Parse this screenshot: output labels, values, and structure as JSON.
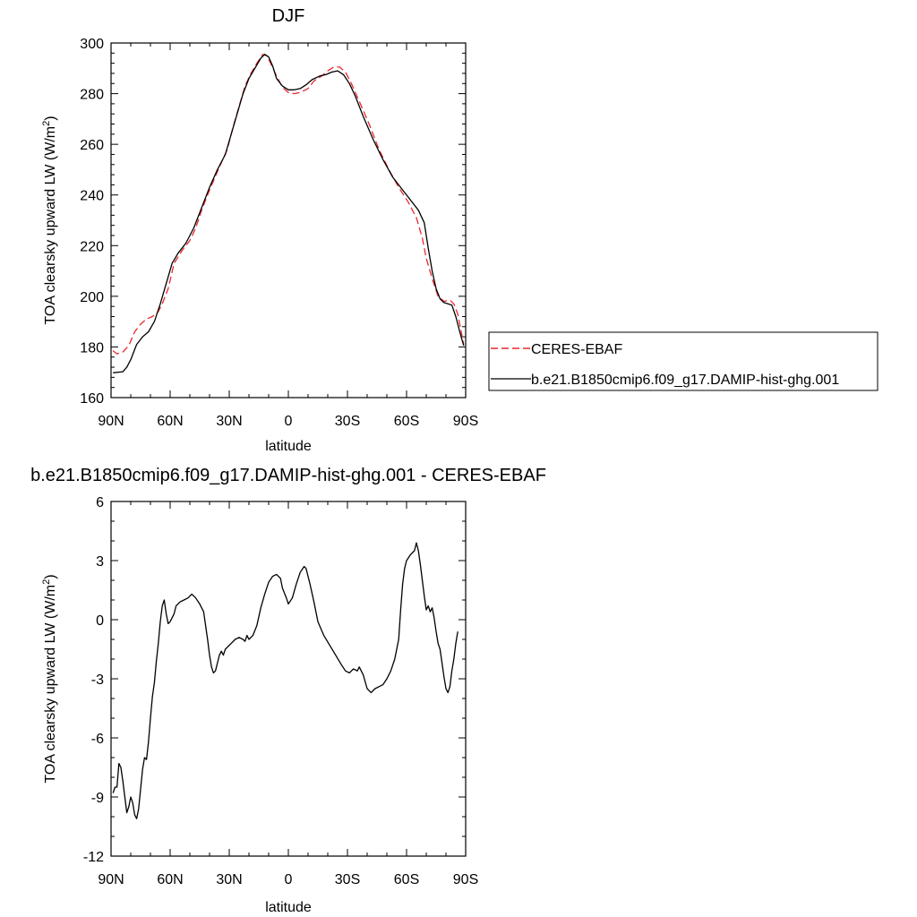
{
  "chart_data": [
    {
      "type": "line",
      "title": "DJF",
      "xlabel": "latitude",
      "ylabel": "TOA clearsky upward LW (W/m",
      "ylabel_sup": "2",
      "ylabel_end": ")",
      "xlim": [
        90,
        -90
      ],
      "ylim": [
        160,
        300
      ],
      "xtick_values": [
        90,
        60,
        30,
        0,
        -30,
        -60,
        -90
      ],
      "xtick_labels": [
        "90N",
        "60N",
        "30N",
        "0",
        "30S",
        "60S",
        "90S"
      ],
      "ytick_values": [
        160,
        180,
        200,
        220,
        240,
        260,
        280,
        300
      ],
      "ytick_labels": [
        "160",
        "180",
        "200",
        "220",
        "240",
        "260",
        "280",
        "300"
      ],
      "legend_position": "right",
      "grid": false,
      "series": [
        {
          "name": "CERES-EBAF",
          "color": "#e8282f",
          "dash": "dashed",
          "points": [
            [
              89,
              178.5
            ],
            [
              87,
              177.3
            ],
            [
              84,
              178
            ],
            [
              81,
              180.5
            ],
            [
              78,
              186
            ],
            [
              75,
              189
            ],
            [
              72,
              191
            ],
            [
              69,
              192
            ],
            [
              66,
              194
            ],
            [
              64,
              197
            ],
            [
              61,
              203
            ],
            [
              58,
              213
            ],
            [
              54,
              218
            ],
            [
              50,
              222
            ],
            [
              47,
              227
            ],
            [
              44,
              234
            ],
            [
              40,
              242
            ],
            [
              35,
              251
            ],
            [
              31,
              258
            ],
            [
              28,
              267
            ],
            [
              25,
              275
            ],
            [
              22,
              283
            ],
            [
              19,
              288
            ],
            [
              16,
              292
            ],
            [
              13,
              295.5
            ],
            [
              11,
              295
            ],
            [
              9,
              292
            ],
            [
              6,
              287
            ],
            [
              3,
              282.5
            ],
            [
              0,
              280.5
            ],
            [
              -3,
              280
            ],
            [
              -6,
              280.5
            ],
            [
              -10,
              282
            ],
            [
              -13,
              285
            ],
            [
              -17,
              287
            ],
            [
              -20,
              289
            ],
            [
              -23,
              290.5
            ],
            [
              -26,
              290.5
            ],
            [
              -29,
              288.5
            ],
            [
              -32,
              284
            ],
            [
              -36,
              277
            ],
            [
              -41,
              268
            ],
            [
              -46,
              258
            ],
            [
              -51,
              250
            ],
            [
              -56,
              243
            ],
            [
              -61,
              237
            ],
            [
              -65,
              231
            ],
            [
              -68,
              223
            ],
            [
              -70,
              215
            ],
            [
              -73,
              207
            ],
            [
              -76,
              200
            ],
            [
              -79,
              198
            ],
            [
              -82,
              198.5
            ],
            [
              -84,
              197
            ],
            [
              -86,
              193
            ],
            [
              -89,
              181
            ]
          ]
        },
        {
          "name": "b.e21.B1850cmip6.f09_g17.DAMIP-hist-ghg.001",
          "color": "#000000",
          "dash": "solid",
          "points": [
            [
              89,
              169.8
            ],
            [
              84,
              170.2
            ],
            [
              82,
              172
            ],
            [
              80,
              175
            ],
            [
              77,
              181
            ],
            [
              74,
              184
            ],
            [
              71,
              186
            ],
            [
              68,
              190
            ],
            [
              65,
              197
            ],
            [
              62,
              205
            ],
            [
              59,
              213
            ],
            [
              56,
              217
            ],
            [
              52,
              221
            ],
            [
              48,
              227
            ],
            [
              44,
              235
            ],
            [
              40,
              243
            ],
            [
              36,
              250
            ],
            [
              32,
              256
            ],
            [
              29,
              264
            ],
            [
              26,
              272
            ],
            [
              23,
              280
            ],
            [
              20,
              286
            ],
            [
              17,
              290
            ],
            [
              14,
              294
            ],
            [
              12,
              295.5
            ],
            [
              10,
              294.5
            ],
            [
              8,
              291
            ],
            [
              6,
              286
            ],
            [
              3,
              283
            ],
            [
              0,
              281.5
            ],
            [
              -3,
              281.5
            ],
            [
              -6,
              282
            ],
            [
              -9,
              283.5
            ],
            [
              -12,
              285.5
            ],
            [
              -16,
              287
            ],
            [
              -19,
              287.5
            ],
            [
              -22,
              288.5
            ],
            [
              -25,
              289
            ],
            [
              -28,
              287.5
            ],
            [
              -31,
              284
            ],
            [
              -34,
              279
            ],
            [
              -38,
              271
            ],
            [
              -43,
              262
            ],
            [
              -48,
              254
            ],
            [
              -53,
              247
            ],
            [
              -58,
              242
            ],
            [
              -62,
              238
            ],
            [
              -66,
              234
            ],
            [
              -69,
              229
            ],
            [
              -71,
              219
            ],
            [
              -73,
              210
            ],
            [
              -75,
              203
            ],
            [
              -77,
              199
            ],
            [
              -79,
              197.5
            ],
            [
              -81,
              197
            ],
            [
              -83,
              196.5
            ],
            [
              -85,
              192
            ],
            [
              -87,
              186
            ],
            [
              -89,
              180.5
            ]
          ]
        }
      ]
    },
    {
      "type": "line",
      "title": "b.e21.B1850cmip6.f09_g17.DAMIP-hist-ghg.001 - CERES-EBAF",
      "xlabel": "latitude",
      "ylabel": "TOA clearsky upward LW (W/m",
      "ylabel_sup": "2",
      "ylabel_end": ")",
      "xlim": [
        90,
        -90
      ],
      "ylim": [
        -12,
        6
      ],
      "xtick_values": [
        90,
        60,
        30,
        0,
        -30,
        -60,
        -90
      ],
      "xtick_labels": [
        "90N",
        "60N",
        "30N",
        "0",
        "30S",
        "60S",
        "90S"
      ],
      "ytick_values": [
        -12,
        -9,
        -6,
        -3,
        0,
        3,
        6
      ],
      "ytick_labels": [
        "-12",
        "-9",
        "-6",
        "-3",
        "0",
        "3",
        "6"
      ],
      "grid": false,
      "series": [
        {
          "color": "#000000",
          "dash": "solid",
          "points": [
            [
              89,
              -8.8
            ],
            [
              88,
              -8.5
            ],
            [
              87,
              -8.5
            ],
            [
              86,
              -7.3
            ],
            [
              85,
              -7.5
            ],
            [
              84,
              -8.2
            ],
            [
              83,
              -9.0
            ],
            [
              82,
              -9.8
            ],
            [
              81,
              -9.5
            ],
            [
              80,
              -9.0
            ],
            [
              79,
              -9.3
            ],
            [
              78,
              -9.9
            ],
            [
              77,
              -10.1
            ],
            [
              76,
              -9.6
            ],
            [
              75,
              -8.6
            ],
            [
              74,
              -7.6
            ],
            [
              73,
              -7.0
            ],
            [
              72,
              -7.1
            ],
            [
              71,
              -6.2
            ],
            [
              70,
              -5.0
            ],
            [
              69,
              -3.9
            ],
            [
              68,
              -3.2
            ],
            [
              67,
              -2.1
            ],
            [
              66,
              -1.2
            ],
            [
              65,
              -0.1
            ],
            [
              64,
              0.7
            ],
            [
              63,
              1.0
            ],
            [
              62,
              0.3
            ],
            [
              61,
              -0.2
            ],
            [
              60,
              -0.1
            ],
            [
              58,
              0.3
            ],
            [
              57,
              0.7
            ],
            [
              55,
              0.9
            ],
            [
              53,
              1.0
            ],
            [
              51,
              1.1
            ],
            [
              49,
              1.3
            ],
            [
              47,
              1.1
            ],
            [
              45,
              0.8
            ],
            [
              43,
              0.4
            ],
            [
              42,
              -0.3
            ],
            [
              41,
              -1.0
            ],
            [
              40,
              -1.8
            ],
            [
              39,
              -2.4
            ],
            [
              38,
              -2.7
            ],
            [
              37,
              -2.6
            ],
            [
              36,
              -2.2
            ],
            [
              35,
              -1.8
            ],
            [
              34,
              -1.6
            ],
            [
              33,
              -1.8
            ],
            [
              32,
              -1.5
            ],
            [
              31,
              -1.4
            ],
            [
              29,
              -1.2
            ],
            [
              27,
              -1.0
            ],
            [
              25,
              -0.9
            ],
            [
              23,
              -1.0
            ],
            [
              22,
              -1.1
            ],
            [
              21,
              -0.8
            ],
            [
              20,
              -1.0
            ],
            [
              18,
              -0.8
            ],
            [
              16,
              -0.3
            ],
            [
              14,
              0.6
            ],
            [
              12,
              1.3
            ],
            [
              10,
              1.9
            ],
            [
              8,
              2.2
            ],
            [
              6,
              2.3
            ],
            [
              4,
              2.1
            ],
            [
              3,
              1.6
            ],
            [
              1,
              1.1
            ],
            [
              0,
              0.8
            ],
            [
              -2,
              1.1
            ],
            [
              -4,
              1.8
            ],
            [
              -6,
              2.4
            ],
            [
              -8,
              2.7
            ],
            [
              -9,
              2.6
            ],
            [
              -11,
              1.8
            ],
            [
              -13,
              0.9
            ],
            [
              -15,
              -0.1
            ],
            [
              -18,
              -0.8
            ],
            [
              -21,
              -1.3
            ],
            [
              -24,
              -1.8
            ],
            [
              -27,
              -2.3
            ],
            [
              -29,
              -2.6
            ],
            [
              -31,
              -2.7
            ],
            [
              -33,
              -2.5
            ],
            [
              -35,
              -2.6
            ],
            [
              -36,
              -2.4
            ],
            [
              -38,
              -2.8
            ],
            [
              -40,
              -3.5
            ],
            [
              -42,
              -3.7
            ],
            [
              -44,
              -3.5
            ],
            [
              -46,
              -3.4
            ],
            [
              -48,
              -3.3
            ],
            [
              -50,
              -3.0
            ],
            [
              -52,
              -2.6
            ],
            [
              -54,
              -2.0
            ],
            [
              -56,
              -1.0
            ],
            [
              -57,
              0.5
            ],
            [
              -58,
              1.8
            ],
            [
              -59,
              2.6
            ],
            [
              -60,
              3.0
            ],
            [
              -62,
              3.3
            ],
            [
              -64,
              3.5
            ],
            [
              -65,
              3.9
            ],
            [
              -66,
              3.5
            ],
            [
              -67,
              2.8
            ],
            [
              -68,
              2.0
            ],
            [
              -69,
              1.2
            ],
            [
              -70,
              0.5
            ],
            [
              -71,
              0.7
            ],
            [
              -72,
              0.4
            ],
            [
              -73,
              0.6
            ],
            [
              -74,
              0.1
            ],
            [
              -75,
              -0.6
            ],
            [
              -76,
              -1.2
            ],
            [
              -77,
              -1.5
            ],
            [
              -78,
              -2.2
            ],
            [
              -79,
              -2.9
            ],
            [
              -80,
              -3.5
            ],
            [
              -81,
              -3.7
            ],
            [
              -82,
              -3.4
            ],
            [
              -83,
              -2.6
            ],
            [
              -84,
              -2.0
            ],
            [
              -85,
              -1.2
            ],
            [
              -86,
              -0.6
            ]
          ]
        }
      ]
    }
  ]
}
